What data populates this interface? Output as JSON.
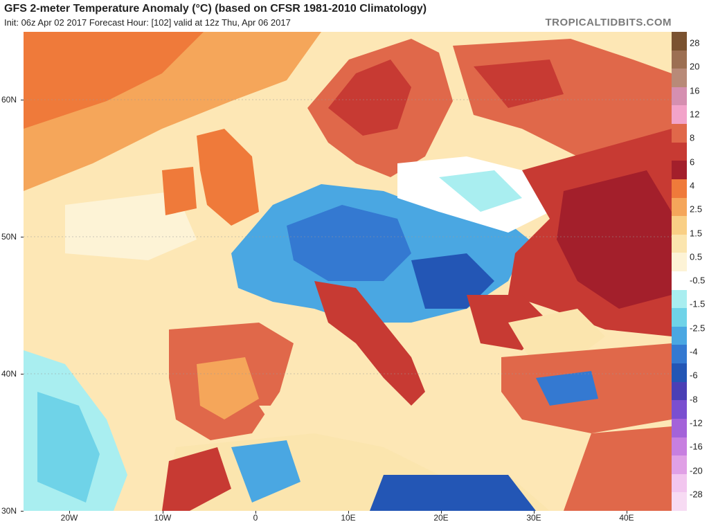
{
  "header": {
    "title": "GFS 2-meter Temperature Anomaly (°C) (based on CFSR 1981-2010 Climatology)",
    "subtitle": "Init: 06z Apr 02 2017   Forecast Hour: [102]   valid at 12z Thu, Apr 06 2017",
    "brand": "TROPICALTIDBITS.COM"
  },
  "map": {
    "lat_labels": [
      "60N",
      "50N",
      "40N",
      "30N"
    ],
    "lon_labels": [
      "20W",
      "10W",
      "0",
      "10E",
      "20E",
      "30E",
      "40E"
    ],
    "region": "Europe"
  },
  "colorbar": {
    "labels": [
      "28",
      "20",
      "16",
      "12",
      "8",
      "6",
      "4",
      "2.5",
      "1.5",
      "0.5",
      "-0.5",
      "-1.5",
      "-2.5",
      "-4",
      "-6",
      "-8",
      "-12",
      "-16",
      "-20",
      "-28"
    ],
    "colors": [
      "#7a5230",
      "#9c6f52",
      "#b88a78",
      "#d58fb0",
      "#f2a3c9",
      "#e0684a",
      "#c73a33",
      "#a31f2b",
      "#ef7a3a",
      "#f5a65a",
      "#f9cf85",
      "#fbe5ae",
      "#fdf3d6",
      "#ffffff",
      "#a9eef0",
      "#6fd3e8",
      "#4aa7e2",
      "#3479d1",
      "#2356b5",
      "#4a3fb5",
      "#7a4fd0",
      "#a463d9",
      "#c77fe0",
      "#e0a0e6",
      "#f2c6ef",
      "#f7dbf3"
    ]
  }
}
